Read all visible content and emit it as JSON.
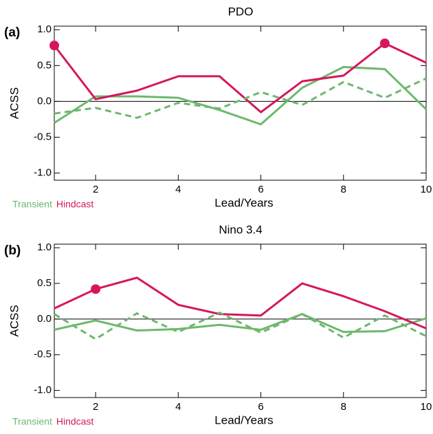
{
  "chart_data": [
    {
      "type": "line",
      "label": "(a)",
      "title": "PDO",
      "ylabel": "ACSS",
      "xlabel": "Lead/Years",
      "x": [
        1,
        2,
        3,
        4,
        5,
        6,
        7,
        8,
        9,
        10
      ],
      "xlim": [
        1,
        10
      ],
      "xticks": [
        2,
        4,
        6,
        8,
        10
      ],
      "ylim": [
        -1.1,
        1.05
      ],
      "yticks": [
        {
          "value": -1,
          "label": "-1.0"
        },
        -0.5,
        {
          "value": 0,
          "label": "0.0"
        },
        0.5,
        {
          "value": 1,
          "label": "1.0"
        }
      ],
      "series": [
        {
          "name": "Transient",
          "color": "#6db86d",
          "style": "solid",
          "values": [
            -0.3,
            0.07,
            0.07,
            0.05,
            -0.12,
            -0.32,
            0.19,
            0.48,
            0.45,
            -0.11
          ]
        },
        {
          "name": "Hindcast",
          "color": "#d6165e",
          "style": "solid",
          "values": [
            0.78,
            0.03,
            0.15,
            0.35,
            0.35,
            -0.15,
            0.28,
            0.36,
            0.81,
            0.54
          ],
          "significant": [
            0,
            8
          ]
        },
        {
          "color": "#6db86d",
          "style": "dashed",
          "values": [
            -0.17,
            -0.09,
            -0.23,
            -0.02,
            -0.1,
            0.13,
            -0.05,
            0.27,
            0.05,
            0.32
          ]
        }
      ]
    },
    {
      "type": "line",
      "label": "(b)",
      "title": "Nino 3.4",
      "ylabel": "ACSS",
      "xlabel": "Lead/Years",
      "x": [
        1,
        2,
        3,
        4,
        5,
        6,
        7,
        8,
        9,
        10
      ],
      "xlim": [
        1,
        10
      ],
      "xticks": [
        2,
        4,
        6,
        8,
        10
      ],
      "ylim": [
        -1.1,
        1.05
      ],
      "yticks": [
        {
          "value": -1,
          "label": "-1.0"
        },
        -0.5,
        {
          "value": 0,
          "label": "0.0"
        },
        0.5,
        {
          "value": 1,
          "label": "1.0"
        }
      ],
      "series": [
        {
          "name": "Transient",
          "color": "#6db86d",
          "style": "solid",
          "values": [
            -0.15,
            -0.02,
            -0.16,
            -0.14,
            -0.08,
            -0.15,
            0.07,
            -0.18,
            -0.17,
            0.01
          ]
        },
        {
          "name": "Hindcast",
          "color": "#d6165e",
          "style": "solid",
          "values": [
            0.15,
            0.42,
            0.58,
            0.2,
            0.07,
            0.05,
            0.5,
            0.32,
            0.11,
            -0.13
          ],
          "significant": [
            1
          ]
        },
        {
          "color": "#6db86d",
          "style": "dashed",
          "values": [
            0.07,
            -0.28,
            0.08,
            -0.18,
            0.09,
            -0.19,
            0.07,
            -0.26,
            0.05,
            -0.24
          ]
        }
      ]
    }
  ]
}
